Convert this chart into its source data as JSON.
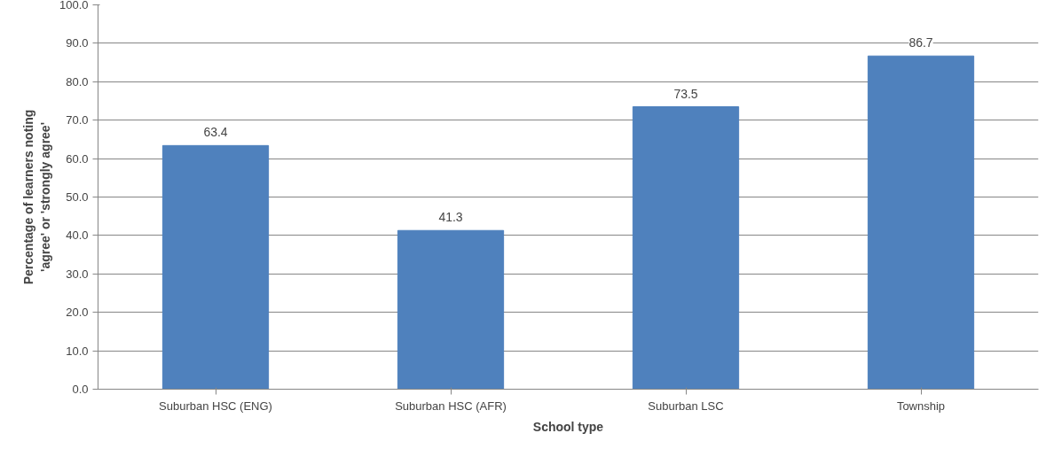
{
  "chart_data": {
    "type": "bar",
    "xlabel": "School type",
    "ylabel": "Percentage of learners noting 'agree' or 'strongly agree'",
    "categories": [
      "Suburban HSC (ENG)",
      "Suburban HSC (AFR)",
      "Suburban LSC",
      "Township"
    ],
    "values": [
      63.4,
      41.3,
      73.5,
      86.7
    ],
    "color": "#4f81bd",
    "data_labels": true,
    "grid": "y",
    "ylim": [
      0,
      100
    ],
    "yticks": [
      {
        "value": 0,
        "label": "0.0"
      },
      {
        "value": 10,
        "label": "10.0"
      },
      {
        "value": 20,
        "label": "20.0"
      },
      {
        "value": 30,
        "label": "30.0"
      },
      {
        "value": 40,
        "label": "40.0"
      },
      {
        "value": 50,
        "label": "50.0"
      },
      {
        "value": 60,
        "label": "60.0"
      },
      {
        "value": 70,
        "label": "70.0"
      },
      {
        "value": 80,
        "label": "80.0"
      },
      {
        "value": 90,
        "label": "90.0"
      },
      {
        "value": 100,
        "label": "100.0"
      }
    ]
  }
}
